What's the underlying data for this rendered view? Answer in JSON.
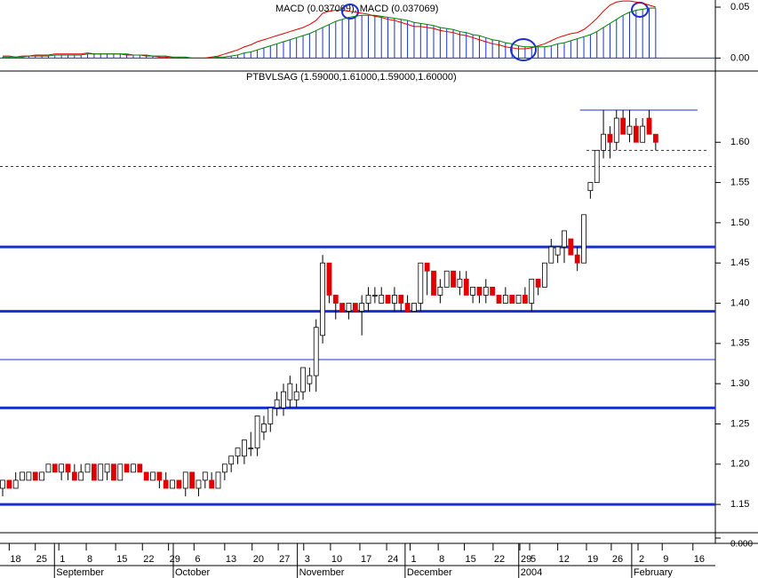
{
  "chart_data": [
    {
      "type": "macd",
      "title": "MACD (0.037069), MACD (0.037069)",
      "ylim": [
        -0.011,
        0.057
      ],
      "yticks": [
        {
          "value": 0.05,
          "label": "0.05"
        },
        {
          "value": 0,
          "label": "0.00"
        }
      ],
      "series": [
        {
          "color": "#e00000",
          "values": [
            0.002,
            0.002,
            0.001,
            0.002,
            0.002,
            0.003,
            0.003,
            0.003,
            0.004,
            0.004,
            0.004,
            0.004,
            0.004,
            0.005,
            0.004,
            0.004,
            0.004,
            0.004,
            0.004,
            0.003,
            0.003,
            0.003,
            0.002,
            0.002,
            0.001,
            0.001,
            0.0,
            0.0,
            0.0,
            0.0,
            0.0,
            0.0,
            0.001,
            0.002,
            0.004,
            0.006,
            0.008,
            0.011,
            0.013,
            0.016,
            0.018,
            0.02,
            0.022,
            0.024,
            0.026,
            0.028,
            0.03,
            0.033,
            0.037,
            0.044,
            0.046,
            0.047,
            0.047,
            0.046,
            0.045,
            0.044,
            0.043,
            0.041,
            0.04,
            0.038,
            0.037,
            0.035,
            0.033,
            0.031,
            0.031,
            0.03,
            0.029,
            0.027,
            0.026,
            0.025,
            0.023,
            0.022,
            0.02,
            0.018,
            0.016,
            0.014,
            0.013,
            0.011,
            0.01,
            0.009,
            0.009,
            0.01,
            0.012,
            0.014,
            0.017,
            0.02,
            0.022,
            0.024,
            0.025,
            0.028,
            0.033,
            0.039,
            0.046,
            0.052,
            0.055,
            0.056,
            0.056,
            0.055,
            0.054,
            0.052,
            0.05
          ]
        },
        {
          "color": "#008000",
          "values": [
            0.001,
            0.001,
            0.001,
            0.001,
            0.002,
            0.002,
            0.002,
            0.002,
            0.003,
            0.003,
            0.003,
            0.003,
            0.003,
            0.004,
            0.004,
            0.004,
            0.004,
            0.004,
            0.004,
            0.004,
            0.003,
            0.003,
            0.003,
            0.002,
            0.002,
            0.002,
            0.001,
            0.001,
            0.001,
            0.0,
            0.0,
            0.0,
            0.0,
            0.001,
            0.001,
            0.002,
            0.003,
            0.005,
            0.006,
            0.008,
            0.01,
            0.012,
            0.014,
            0.016,
            0.018,
            0.02,
            0.022,
            0.024,
            0.027,
            0.03,
            0.033,
            0.036,
            0.038,
            0.04,
            0.041,
            0.042,
            0.042,
            0.042,
            0.041,
            0.04,
            0.039,
            0.038,
            0.037,
            0.035,
            0.034,
            0.033,
            0.032,
            0.03,
            0.029,
            0.028,
            0.026,
            0.025,
            0.023,
            0.022,
            0.02,
            0.018,
            0.017,
            0.015,
            0.014,
            0.012,
            0.011,
            0.011,
            0.011,
            0.011,
            0.012,
            0.014,
            0.015,
            0.017,
            0.019,
            0.021,
            0.023,
            0.026,
            0.03,
            0.034,
            0.038,
            0.042,
            0.045,
            0.047,
            0.048,
            0.049,
            0.049
          ]
        }
      ],
      "bar_color": "#1a2fd0"
    },
    {
      "type": "candlestick",
      "title": "PTBVLSAG (1.59000,1.61000,1.59000,1.60000)",
      "up_color": "#ffffff",
      "down_color": "#e00000",
      "xlim": [
        0,
        109
      ],
      "ylim": [
        1.117,
        1.672
      ],
      "yticks": [
        {
          "value": 1.15,
          "label": "1.15"
        },
        {
          "value": 1.2,
          "label": "1.20"
        },
        {
          "value": 1.25,
          "label": "1.25"
        },
        {
          "value": 1.3,
          "label": "1.30"
        },
        {
          "value": 1.35,
          "label": "1.35"
        },
        {
          "value": 1.4,
          "label": "1.40"
        },
        {
          "value": 1.45,
          "label": "1.45"
        },
        {
          "value": 1.5,
          "label": "1.50"
        },
        {
          "value": 1.55,
          "label": "1.55"
        },
        {
          "value": 1.6,
          "label": "1.60"
        }
      ],
      "hlines": [
        {
          "value": 1.47,
          "style": "thick"
        },
        {
          "value": 1.39,
          "style": "thick"
        },
        {
          "value": 1.27,
          "style": "thick"
        },
        {
          "value": 1.15,
          "style": "thick"
        },
        {
          "value": 1.33,
          "style": "thin"
        },
        {
          "value": 1.57,
          "style": "dashed"
        },
        {
          "value": 1.59,
          "style": "dashed",
          "xrange": [
            89.4,
            108
          ]
        },
        {
          "value": 1.64,
          "style": "thin",
          "xrange": [
            88.4,
            106.4
          ]
        }
      ],
      "ohlc": [
        [
          1.17,
          1.18,
          1.16,
          1.18
        ],
        [
          1.18,
          1.18,
          1.17,
          1.17
        ],
        [
          1.17,
          1.19,
          1.17,
          1.18
        ],
        [
          1.18,
          1.19,
          1.18,
          1.19
        ],
        [
          1.18,
          1.19,
          1.18,
          1.19
        ],
        [
          1.19,
          1.19,
          1.18,
          1.18
        ],
        [
          1.18,
          1.19,
          1.18,
          1.19
        ],
        [
          1.19,
          1.2,
          1.19,
          1.2
        ],
        [
          1.2,
          1.2,
          1.19,
          1.19
        ],
        [
          1.19,
          1.2,
          1.18,
          1.2
        ],
        [
          1.2,
          1.2,
          1.18,
          1.19
        ],
        [
          1.19,
          1.2,
          1.18,
          1.18
        ],
        [
          1.18,
          1.2,
          1.18,
          1.19
        ],
        [
          1.19,
          1.2,
          1.19,
          1.2
        ],
        [
          1.2,
          1.2,
          1.18,
          1.18
        ],
        [
          1.18,
          1.2,
          1.18,
          1.2
        ],
        [
          1.19,
          1.2,
          1.18,
          1.2
        ],
        [
          1.2,
          1.2,
          1.18,
          1.18
        ],
        [
          1.18,
          1.2,
          1.18,
          1.2
        ],
        [
          1.2,
          1.2,
          1.19,
          1.19
        ],
        [
          1.19,
          1.2,
          1.19,
          1.2
        ],
        [
          1.2,
          1.2,
          1.19,
          1.19
        ],
        [
          1.19,
          1.19,
          1.18,
          1.18
        ],
        [
          1.18,
          1.19,
          1.18,
          1.19
        ],
        [
          1.19,
          1.19,
          1.17,
          1.18
        ],
        [
          1.18,
          1.19,
          1.17,
          1.17
        ],
        [
          1.17,
          1.18,
          1.17,
          1.18
        ],
        [
          1.18,
          1.18,
          1.17,
          1.17
        ],
        [
          1.17,
          1.19,
          1.16,
          1.19
        ],
        [
          1.19,
          1.19,
          1.17,
          1.17
        ],
        [
          1.17,
          1.18,
          1.16,
          1.18
        ],
        [
          1.18,
          1.19,
          1.17,
          1.19
        ],
        [
          1.18,
          1.19,
          1.17,
          1.17
        ],
        [
          1.17,
          1.19,
          1.17,
          1.19
        ],
        [
          1.19,
          1.2,
          1.18,
          1.2
        ],
        [
          1.2,
          1.21,
          1.19,
          1.21
        ],
        [
          1.21,
          1.22,
          1.2,
          1.22
        ],
        [
          1.21,
          1.23,
          1.2,
          1.23
        ],
        [
          1.22,
          1.24,
          1.21,
          1.22
        ],
        [
          1.22,
          1.26,
          1.21,
          1.26
        ],
        [
          1.24,
          1.26,
          1.23,
          1.25
        ],
        [
          1.25,
          1.27,
          1.24,
          1.27
        ],
        [
          1.27,
          1.29,
          1.26,
          1.28
        ],
        [
          1.27,
          1.3,
          1.26,
          1.29
        ],
        [
          1.28,
          1.31,
          1.27,
          1.3
        ],
        [
          1.28,
          1.3,
          1.27,
          1.29
        ],
        [
          1.29,
          1.32,
          1.28,
          1.32
        ],
        [
          1.3,
          1.32,
          1.29,
          1.31
        ],
        [
          1.31,
          1.38,
          1.29,
          1.37
        ],
        [
          1.36,
          1.46,
          1.35,
          1.45
        ],
        [
          1.45,
          1.45,
          1.4,
          1.41
        ],
        [
          1.41,
          1.41,
          1.38,
          1.4
        ],
        [
          1.4,
          1.4,
          1.39,
          1.39
        ],
        [
          1.39,
          1.4,
          1.38,
          1.4
        ],
        [
          1.4,
          1.4,
          1.39,
          1.39
        ],
        [
          1.39,
          1.41,
          1.36,
          1.4
        ],
        [
          1.4,
          1.42,
          1.39,
          1.41
        ],
        [
          1.41,
          1.42,
          1.4,
          1.41
        ],
        [
          1.4,
          1.42,
          1.4,
          1.41
        ],
        [
          1.41,
          1.41,
          1.4,
          1.4
        ],
        [
          1.4,
          1.42,
          1.39,
          1.41
        ],
        [
          1.41,
          1.41,
          1.39,
          1.4
        ],
        [
          1.4,
          1.41,
          1.39,
          1.39
        ],
        [
          1.39,
          1.4,
          1.39,
          1.4
        ],
        [
          1.4,
          1.45,
          1.39,
          1.45
        ],
        [
          1.45,
          1.45,
          1.41,
          1.44
        ],
        [
          1.44,
          1.44,
          1.41,
          1.41
        ],
        [
          1.41,
          1.43,
          1.4,
          1.42
        ],
        [
          1.42,
          1.44,
          1.42,
          1.44
        ],
        [
          1.44,
          1.44,
          1.42,
          1.42
        ],
        [
          1.42,
          1.44,
          1.41,
          1.43
        ],
        [
          1.43,
          1.44,
          1.41,
          1.41
        ],
        [
          1.41,
          1.42,
          1.4,
          1.42
        ],
        [
          1.42,
          1.42,
          1.4,
          1.41
        ],
        [
          1.41,
          1.43,
          1.4,
          1.42
        ],
        [
          1.42,
          1.42,
          1.41,
          1.41
        ],
        [
          1.41,
          1.41,
          1.4,
          1.4
        ],
        [
          1.4,
          1.42,
          1.4,
          1.41
        ],
        [
          1.41,
          1.41,
          1.4,
          1.4
        ],
        [
          1.4,
          1.41,
          1.4,
          1.41
        ],
        [
          1.41,
          1.42,
          1.4,
          1.4
        ],
        [
          1.4,
          1.43,
          1.39,
          1.43
        ],
        [
          1.43,
          1.43,
          1.41,
          1.42
        ],
        [
          1.42,
          1.45,
          1.42,
          1.45
        ],
        [
          1.45,
          1.48,
          1.45,
          1.47
        ],
        [
          1.46,
          1.47,
          1.45,
          1.47
        ],
        [
          1.47,
          1.49,
          1.45,
          1.49
        ],
        [
          1.48,
          1.48,
          1.46,
          1.46
        ],
        [
          1.46,
          1.47,
          1.44,
          1.45
        ],
        [
          1.45,
          1.51,
          1.45,
          1.51
        ],
        [
          1.54,
          1.55,
          1.53,
          1.55
        ],
        [
          1.55,
          1.59,
          1.55,
          1.59
        ],
        [
          1.59,
          1.64,
          1.58,
          1.61
        ],
        [
          1.61,
          1.62,
          1.58,
          1.6
        ],
        [
          1.6,
          1.64,
          1.59,
          1.63
        ],
        [
          1.63,
          1.64,
          1.61,
          1.61
        ],
        [
          1.61,
          1.64,
          1.6,
          1.62
        ],
        [
          1.62,
          1.63,
          1.6,
          1.6
        ],
        [
          1.6,
          1.63,
          1.6,
          1.62
        ],
        [
          1.63,
          1.64,
          1.61,
          1.61
        ],
        [
          1.61,
          1.61,
          1.59,
          1.6
        ]
      ],
      "xticks": [
        {
          "value": 1,
          "label": "18"
        },
        {
          "value": 5,
          "label": "25"
        },
        {
          "value": 8.6,
          "label": "1"
        },
        {
          "value": 12.8,
          "label": "8"
        },
        {
          "value": 17.3,
          "label": "15"
        },
        {
          "value": 21.4,
          "label": "22"
        },
        {
          "value": 25.4,
          "label": "29"
        },
        {
          "value": 29.3,
          "label": "6"
        },
        {
          "value": 34,
          "label": "13"
        },
        {
          "value": 38.2,
          "label": "20"
        },
        {
          "value": 42.2,
          "label": "27"
        },
        {
          "value": 46.1,
          "label": "3"
        },
        {
          "value": 50.2,
          "label": "10"
        },
        {
          "value": 54.7,
          "label": "17"
        },
        {
          "value": 58.8,
          "label": "24"
        },
        {
          "value": 62.4,
          "label": "1"
        },
        {
          "value": 66.7,
          "label": "8"
        },
        {
          "value": 70.7,
          "label": "15"
        },
        {
          "value": 75.1,
          "label": "22"
        },
        {
          "value": 79.2,
          "label": "29"
        },
        {
          "value": 80.7,
          "label": "5"
        },
        {
          "value": 85,
          "label": "12"
        },
        {
          "value": 89.4,
          "label": "19"
        },
        {
          "value": 93.2,
          "label": "26"
        },
        {
          "value": 97.3,
          "label": "2"
        },
        {
          "value": 101,
          "label": "9"
        },
        {
          "value": 105.7,
          "label": "16"
        }
      ],
      "xticks2": [
        {
          "value": 8.2,
          "label": "September"
        },
        {
          "value": 26.4,
          "label": "October"
        },
        {
          "value": 45.4,
          "label": "November"
        },
        {
          "value": 61.9,
          "label": "December"
        },
        {
          "value": 79.3,
          "label": "2004"
        },
        {
          "value": 96.6,
          "label": "February"
        }
      ]
    },
    {
      "type": "indicator",
      "ylim": [
        -0.01,
        0.01
      ],
      "yticks": [
        {
          "value": 0,
          "label": "0.000"
        }
      ]
    }
  ]
}
